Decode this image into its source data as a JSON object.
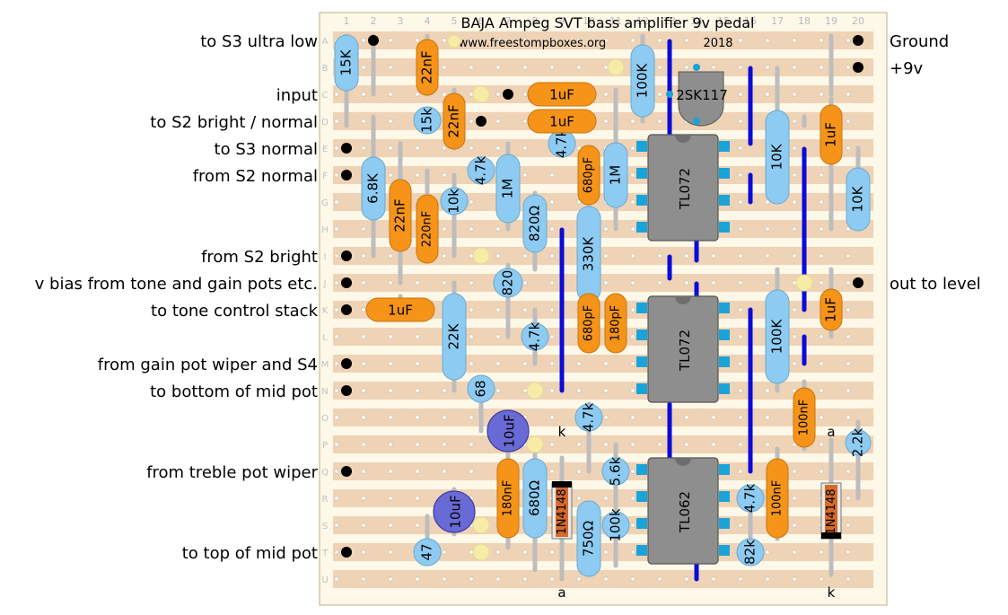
{
  "header": {
    "title": "BAJA Ampeg SVT bass amplifier 9v pedal",
    "url": "www.freestompboxes.org",
    "year": "2018"
  },
  "columns": [
    "1",
    "2",
    "3",
    "4",
    "5",
    "6",
    "7",
    "8",
    "9",
    "10",
    "11",
    "12",
    "13",
    "14",
    "15",
    "16",
    "17",
    "18",
    "19",
    "20"
  ],
  "rows": [
    "A",
    "B",
    "C",
    "D",
    "E",
    "F",
    "G",
    "H",
    "I",
    "J",
    "K",
    "L",
    "M",
    "N",
    "O",
    "P",
    "Q",
    "R",
    "S",
    "T",
    "U"
  ],
  "left_labels": [
    "to S3 ultra low",
    "input",
    "to S2 bright / normal",
    "to S3 normal",
    "from S2 normal",
    "from S2 bright",
    "v bias from tone and gain pots etc.",
    "to tone control stack",
    "from gain pot wiper and S4",
    "to bottom of mid pot",
    "from treble pot wiper",
    "to top of mid pot"
  ],
  "right_labels": [
    "Ground",
    "+9v",
    "out to level"
  ],
  "ics": [
    "TL072",
    "TL072",
    "TL062"
  ],
  "transistor": "2SK117",
  "diode_label": "1N4148",
  "markers": {
    "k": "k",
    "a": "a"
  },
  "resistors": [
    "15K",
    "6.8K",
    "15k",
    "10k",
    "4.7k",
    "1M",
    "820Ω",
    "4.7k",
    "1M",
    "100K",
    "330K",
    "820",
    "4.7k",
    "22K",
    "68",
    "10K",
    "10K",
    "100K",
    "4.7k",
    "5.6k",
    "680Ω",
    "750Ω",
    "100k",
    "4.7k",
    "82k",
    "47",
    "2.2k"
  ],
  "capacitors": [
    "22nF",
    "22nF",
    "1uF",
    "1uF",
    "22nF",
    "220nF",
    "680pF",
    "680pF",
    "180pF",
    "1uF",
    "1uF",
    "1uF",
    "100nF",
    "100nF",
    "180nF"
  ],
  "electrolytics": [
    "10uF",
    "10uF"
  ],
  "colors": {
    "board": "#fdf8e8",
    "strip": "#efd3b6",
    "resistor": "#8dcbf2",
    "capacitor": "#f59418",
    "electrolytic": "#6a6ad6",
    "ic": "#8e8e8e",
    "ic_pin": "#19a3d9",
    "link": "#0b0bd8",
    "lead": "#bdbdbd"
  }
}
